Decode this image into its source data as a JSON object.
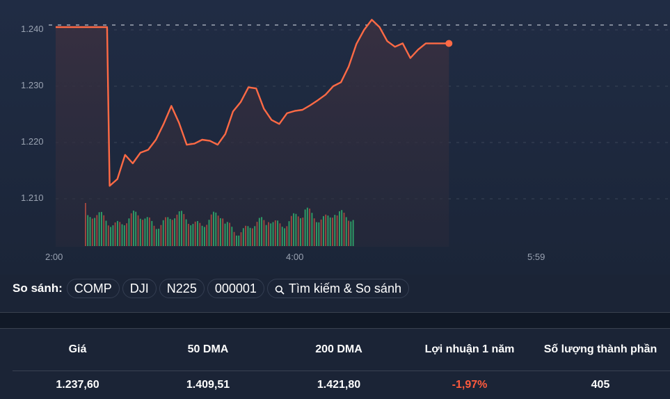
{
  "chart_data": {
    "type": "line",
    "title": "",
    "xlabel": "",
    "ylabel": "",
    "x_ticks": [
      "2:00",
      "4:00",
      "5:59"
    ],
    "y_ticks": [
      "1.210",
      "1.220",
      "1.230",
      "1.240"
    ],
    "ylim": [
      1.2025,
      1.2425
    ],
    "grid": true,
    "previous_close_line": 1.2405,
    "line_color": "#ff6a45",
    "series": [
      {
        "name": "Index price",
        "x": [
          "2:00",
          "2:20",
          "2:21",
          "2:24",
          "2:27",
          "2:30",
          "2:33",
          "2:36",
          "2:39",
          "2:42",
          "2:45",
          "2:48",
          "2:51",
          "2:54",
          "2:57",
          "3:00",
          "3:03",
          "3:06",
          "3:09",
          "3:12",
          "3:15",
          "3:18",
          "3:21",
          "3:24",
          "3:27",
          "3:30",
          "3:33",
          "3:36",
          "3:39",
          "3:42",
          "3:45",
          "3:48",
          "3:51",
          "3:54",
          "3:57",
          "4:00",
          "4:03",
          "4:06",
          "4:09",
          "4:12",
          "4:15",
          "4:18",
          "4:21",
          "4:24",
          "4:27",
          "4:30",
          "4:33"
        ],
        "values": [
          1.2405,
          1.2405,
          1.2123,
          1.2135,
          1.2178,
          1.2163,
          1.2182,
          1.2187,
          1.2205,
          1.2233,
          1.2265,
          1.2235,
          1.2196,
          1.2198,
          1.2205,
          1.2203,
          1.2196,
          1.2215,
          1.2255,
          1.2272,
          1.2298,
          1.2296,
          1.226,
          1.224,
          1.2233,
          1.2252,
          1.2256,
          1.2258,
          1.2266,
          1.2275,
          1.2285,
          1.23,
          1.2307,
          1.2335,
          1.2375,
          1.24,
          1.2418,
          1.2405,
          1.238,
          1.237,
          1.2376,
          1.235,
          1.2365,
          1.2376,
          1.2376,
          1.2376,
          1.2376
        ]
      },
      {
        "name": "Volume",
        "type": "bar",
        "up_color": "#2fa46a",
        "down_color": "#a5483f"
      }
    ],
    "last_value": 1237.6
  },
  "compare": {
    "label": "So sánh:",
    "chips": [
      "COMP",
      "DJI",
      "N225",
      "000001"
    ],
    "search_label": "Tìm kiếm & So sánh"
  },
  "stats": {
    "headers": [
      "Giá",
      "50 DMA",
      "200 DMA",
      "Lợi nhuận 1 năm",
      "Số lượng thành phần"
    ],
    "values": [
      "1.237,60",
      "1.409,51",
      "1.421,80",
      "-1,97%",
      "405"
    ]
  }
}
